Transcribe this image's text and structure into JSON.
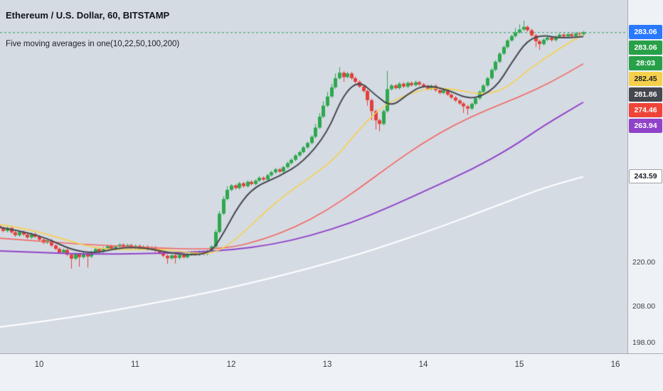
{
  "legend": {
    "title": "Ethereum / U.S. Dollar, 60, BITSTAMP",
    "indicator": "Five moving averages in one(10,22,50,100,200)"
  },
  "price_axis": {
    "badges": [
      {
        "id": "current-price",
        "label": "283.06",
        "bg": "#2979ff",
        "fg": "#ffffff"
      },
      {
        "id": "bar-close-price",
        "label": "283.06",
        "bg": "#28a049",
        "fg": "#ffffff"
      },
      {
        "id": "bar-countdown",
        "label": "28:03",
        "bg": "#28a049",
        "fg": "#ffffff"
      },
      {
        "id": "ma22-value",
        "label": "282.45",
        "bg": "#f6d04c",
        "fg": "#1b1e25"
      },
      {
        "id": "ma10-value",
        "label": "281.86",
        "bg": "#45484f",
        "fg": "#ffffff"
      },
      {
        "id": "ma50-value",
        "label": "274.46",
        "bg": "#ef4438",
        "fg": "#ffffff"
      },
      {
        "id": "ma100-value",
        "label": "263.94",
        "bg": "#9043c9",
        "fg": "#ffffff"
      },
      {
        "id": "ma200-value",
        "label": "243.59",
        "bg": "#ffffff",
        "fg": "#1b1e25",
        "border": "#9aa0ab"
      }
    ]
  },
  "chart_data": {
    "type": "candlestick",
    "symbol": "Ethereum / U.S. Dollar",
    "interval": "60",
    "exchange": "BITSTAMP",
    "x_axis": {
      "labels": [
        "10",
        "11",
        "12",
        "13",
        "14",
        "15",
        "16"
      ],
      "unit": "day of month"
    },
    "y_axis": {
      "ticks": [
        "220.00",
        "208.00",
        "198.00"
      ]
    },
    "price_line": {
      "value": 283.06,
      "color": "#1f9d54"
    },
    "colors": {
      "up": "#2da84e",
      "down": "#e2403b",
      "background": "#d5dbe3"
    },
    "candles": [
      [
        230.2,
        230.6,
        229.1,
        229.5
      ],
      [
        229.5,
        229.9,
        228.4,
        228.8
      ],
      [
        228.8,
        230.0,
        228.4,
        229.6
      ],
      [
        229.6,
        230.0,
        228.0,
        228.4
      ],
      [
        228.4,
        228.8,
        227.2,
        227.6
      ],
      [
        227.6,
        228.9,
        227.2,
        228.5
      ],
      [
        228.5,
        228.9,
        227.4,
        227.8
      ],
      [
        227.8,
        228.2,
        226.6,
        227.0
      ],
      [
        227.0,
        228.3,
        226.6,
        227.9
      ],
      [
        227.9,
        228.3,
        226.8,
        227.2
      ],
      [
        227.2,
        227.6,
        226.0,
        226.4
      ],
      [
        226.4,
        226.8,
        225.2,
        225.6
      ],
      [
        225.6,
        226.6,
        225.2,
        226.2
      ],
      [
        226.2,
        226.6,
        224.4,
        224.8
      ],
      [
        224.8,
        225.2,
        223.5,
        223.9
      ],
      [
        223.9,
        224.3,
        222.5,
        222.9
      ],
      [
        222.9,
        224.0,
        222.5,
        223.6
      ],
      [
        223.6,
        224.0,
        221.9,
        222.3
      ],
      [
        222.3,
        222.7,
        218.5,
        221.2
      ],
      [
        221.2,
        222.8,
        220.8,
        222.4
      ],
      [
        222.4,
        222.8,
        219.0,
        221.6
      ],
      [
        221.6,
        223.0,
        221.2,
        222.6
      ],
      [
        222.6,
        223.0,
        218.8,
        221.8
      ],
      [
        221.8,
        223.4,
        221.4,
        223.0
      ],
      [
        223.0,
        224.2,
        222.6,
        223.8
      ],
      [
        223.8,
        224.2,
        222.8,
        223.2
      ],
      [
        223.2,
        224.4,
        222.8,
        224.0
      ],
      [
        224.0,
        225.0,
        223.6,
        224.6
      ],
      [
        224.6,
        225.0,
        223.5,
        223.9
      ],
      [
        223.9,
        224.9,
        223.5,
        224.5
      ],
      [
        224.5,
        225.4,
        224.1,
        225.0
      ],
      [
        225.0,
        225.4,
        224.0,
        224.4
      ],
      [
        224.4,
        225.3,
        224.0,
        224.9
      ],
      [
        224.9,
        225.3,
        223.9,
        224.3
      ],
      [
        224.3,
        225.1,
        223.9,
        224.7
      ],
      [
        224.7,
        225.1,
        223.6,
        224.0
      ],
      [
        224.0,
        224.9,
        223.6,
        224.5
      ],
      [
        224.5,
        224.9,
        223.4,
        223.8
      ],
      [
        223.8,
        224.6,
        223.4,
        224.2
      ],
      [
        224.2,
        224.6,
        223.0,
        223.4
      ],
      [
        223.4,
        223.8,
        222.4,
        222.8
      ],
      [
        222.8,
        223.2,
        221.6,
        222.0
      ],
      [
        222.0,
        222.4,
        219.8,
        221.3
      ],
      [
        221.3,
        222.5,
        220.9,
        222.1
      ],
      [
        222.1,
        222.5,
        219.9,
        221.4
      ],
      [
        221.4,
        222.6,
        221.0,
        222.2
      ],
      [
        222.2,
        222.6,
        221.2,
        221.6
      ],
      [
        221.6,
        222.8,
        221.2,
        222.4
      ],
      [
        222.4,
        223.3,
        222.0,
        222.9
      ],
      [
        222.9,
        223.3,
        221.9,
        222.3
      ],
      [
        222.3,
        223.4,
        221.9,
        223.0
      ],
      [
        223.0,
        223.4,
        222.1,
        222.5
      ],
      [
        222.5,
        223.6,
        222.1,
        223.2
      ],
      [
        223.2,
        224.9,
        222.8,
        224.5
      ],
      [
        224.5,
        229.2,
        224.1,
        228.5
      ],
      [
        228.5,
        234.2,
        228.1,
        233.5
      ],
      [
        233.5,
        238.3,
        233.1,
        237.5
      ],
      [
        237.5,
        241.0,
        237.1,
        240.0
      ],
      [
        240.0,
        241.6,
        239.6,
        241.2
      ],
      [
        241.2,
        241.6,
        240.1,
        240.5
      ],
      [
        240.5,
        242.2,
        240.1,
        241.8
      ],
      [
        241.8,
        242.2,
        240.6,
        241.0
      ],
      [
        241.0,
        242.6,
        240.6,
        242.2
      ],
      [
        242.2,
        242.6,
        241.2,
        241.6
      ],
      [
        241.6,
        242.9,
        241.2,
        242.5
      ],
      [
        242.5,
        243.7,
        242.1,
        243.3
      ],
      [
        243.3,
        243.7,
        242.4,
        242.8
      ],
      [
        242.8,
        244.4,
        242.4,
        244.0
      ],
      [
        244.0,
        245.2,
        243.6,
        244.8
      ],
      [
        244.8,
        246.0,
        244.4,
        245.6
      ],
      [
        245.6,
        246.0,
        244.6,
        245.0
      ],
      [
        245.0,
        246.6,
        244.6,
        246.2
      ],
      [
        246.2,
        247.7,
        245.8,
        247.3
      ],
      [
        247.3,
        248.6,
        246.9,
        248.2
      ],
      [
        248.2,
        249.8,
        247.8,
        249.4
      ],
      [
        249.4,
        250.7,
        249.0,
        250.3
      ],
      [
        250.3,
        252.0,
        249.9,
        251.6
      ],
      [
        251.6,
        253.2,
        251.2,
        252.8
      ],
      [
        252.8,
        254.9,
        252.4,
        254.5
      ],
      [
        254.5,
        258.0,
        254.1,
        257.0
      ],
      [
        257.0,
        261.0,
        256.6,
        260.0
      ],
      [
        260.0,
        264.2,
        259.6,
        263.0
      ],
      [
        263.0,
        266.8,
        262.6,
        265.5
      ],
      [
        265.5,
        269.0,
        265.1,
        268.0
      ],
      [
        268.0,
        271.8,
        267.6,
        270.5
      ],
      [
        270.5,
        273.5,
        270.1,
        272.0
      ],
      [
        272.0,
        272.4,
        269.5,
        270.8
      ],
      [
        270.8,
        272.2,
        270.4,
        271.8
      ],
      [
        271.8,
        272.2,
        270.1,
        270.5
      ],
      [
        270.5,
        270.9,
        269.1,
        269.5
      ],
      [
        269.5,
        269.9,
        267.8,
        268.2
      ],
      [
        268.2,
        268.6,
        266.6,
        267.0
      ],
      [
        267.0,
        267.4,
        263.0,
        264.5
      ],
      [
        264.5,
        264.9,
        259.0,
        261.5
      ],
      [
        261.5,
        261.9,
        256.5,
        259.0
      ],
      [
        259.0,
        259.4,
        256.0,
        258.0
      ],
      [
        258.0,
        261.9,
        257.6,
        261.5
      ],
      [
        261.5,
        272.5,
        261.1,
        267.5
      ],
      [
        267.5,
        268.9,
        267.1,
        268.5
      ],
      [
        268.5,
        268.9,
        267.4,
        267.8
      ],
      [
        267.8,
        269.4,
        267.4,
        269.0
      ],
      [
        269.0,
        269.4,
        267.8,
        268.2
      ],
      [
        268.2,
        269.6,
        267.8,
        269.2
      ],
      [
        269.2,
        269.6,
        268.2,
        268.6
      ],
      [
        268.6,
        269.8,
        268.2,
        269.4
      ],
      [
        269.4,
        269.8,
        268.4,
        268.8
      ],
      [
        268.8,
        269.2,
        267.9,
        268.3
      ],
      [
        268.3,
        268.7,
        267.2,
        267.6
      ],
      [
        267.6,
        268.8,
        267.2,
        268.4
      ],
      [
        268.4,
        268.8,
        266.8,
        267.2
      ],
      [
        267.2,
        267.6,
        266.1,
        266.5
      ],
      [
        266.5,
        267.7,
        266.1,
        267.3
      ],
      [
        267.3,
        267.7,
        265.6,
        266.0
      ],
      [
        266.0,
        266.4,
        264.8,
        265.2
      ],
      [
        265.2,
        265.6,
        264.0,
        264.4
      ],
      [
        264.4,
        264.8,
        263.2,
        263.6
      ],
      [
        263.6,
        264.0,
        261.0,
        262.8
      ],
      [
        262.8,
        263.2,
        260.5,
        262.2
      ],
      [
        262.2,
        263.9,
        261.8,
        263.5
      ],
      [
        263.5,
        265.4,
        263.1,
        265.0
      ],
      [
        265.0,
        267.2,
        264.6,
        266.8
      ],
      [
        266.8,
        268.9,
        266.4,
        268.5
      ],
      [
        268.5,
        270.9,
        268.1,
        270.5
      ],
      [
        270.5,
        273.2,
        270.1,
        272.8
      ],
      [
        272.8,
        275.4,
        272.4,
        275.0
      ],
      [
        275.0,
        277.6,
        274.6,
        277.2
      ],
      [
        277.2,
        279.4,
        276.8,
        279.0
      ],
      [
        279.0,
        281.2,
        278.6,
        280.8
      ],
      [
        280.8,
        282.4,
        280.4,
        282.0
      ],
      [
        282.0,
        284.2,
        281.6,
        283.0
      ],
      [
        283.0,
        285.2,
        282.6,
        283.8
      ],
      [
        283.8,
        286.2,
        283.4,
        284.5
      ],
      [
        284.5,
        284.9,
        283.2,
        283.6
      ],
      [
        283.6,
        284.0,
        281.8,
        282.2
      ],
      [
        282.2,
        282.6,
        279.0,
        280.6
      ],
      [
        280.6,
        281.0,
        278.2,
        279.8
      ],
      [
        279.8,
        281.4,
        279.4,
        281.0
      ],
      [
        281.0,
        282.0,
        280.6,
        281.6
      ],
      [
        281.6,
        282.0,
        280.5,
        280.9
      ],
      [
        280.9,
        282.2,
        280.5,
        281.8
      ],
      [
        281.8,
        282.8,
        281.4,
        282.4
      ],
      [
        282.4,
        282.8,
        281.5,
        281.9
      ],
      [
        281.9,
        282.9,
        281.5,
        282.5
      ],
      [
        282.5,
        282.9,
        281.6,
        282.0
      ],
      [
        282.0,
        283.1,
        281.6,
        282.7
      ],
      [
        282.7,
        283.1,
        282.1,
        282.5
      ],
      [
        282.5,
        283.4,
        282.1,
        283.06
      ]
    ],
    "ma_lines": [
      {
        "name": "MA200",
        "period": 200,
        "color": "#ffffff",
        "width": 2,
        "last_value": 243.59,
        "points": [
          [
            0,
            202.5
          ],
          [
            12,
            204.2
          ],
          [
            24,
            206.2
          ],
          [
            36,
            208.5
          ],
          [
            48,
            211.0
          ],
          [
            60,
            213.8
          ],
          [
            72,
            217.0
          ],
          [
            84,
            220.5
          ],
          [
            96,
            224.5
          ],
          [
            108,
            229.0
          ],
          [
            118,
            233.0
          ],
          [
            128,
            237.2
          ],
          [
            136,
            240.5
          ],
          [
            146,
            243.59
          ]
        ]
      },
      {
        "name": "MA100",
        "period": 100,
        "color": "#9043c9",
        "width": 2,
        "last_value": 263.94,
        "points": [
          [
            0,
            223.3
          ],
          [
            12,
            222.8
          ],
          [
            24,
            222.4
          ],
          [
            36,
            222.6
          ],
          [
            48,
            222.9
          ],
          [
            58,
            223.6
          ],
          [
            68,
            225.0
          ],
          [
            78,
            227.5
          ],
          [
            88,
            231.0
          ],
          [
            98,
            235.5
          ],
          [
            108,
            240.5
          ],
          [
            118,
            245.5
          ],
          [
            128,
            251.5
          ],
          [
            136,
            257.5
          ],
          [
            146,
            263.94
          ]
        ]
      },
      {
        "name": "MA50",
        "period": 50,
        "color": "#f26661",
        "width": 1.6,
        "last_value": 274.46,
        "points": [
          [
            0,
            226.8
          ],
          [
            10,
            226.0
          ],
          [
            20,
            225.2
          ],
          [
            30,
            224.6
          ],
          [
            40,
            224.1
          ],
          [
            50,
            223.8
          ],
          [
            58,
            224.2
          ],
          [
            66,
            226.4
          ],
          [
            74,
            229.8
          ],
          [
            82,
            234.4
          ],
          [
            90,
            240.4
          ],
          [
            98,
            246.9
          ],
          [
            106,
            252.9
          ],
          [
            114,
            257.9
          ],
          [
            122,
            261.9
          ],
          [
            130,
            265.4
          ],
          [
            138,
            269.4
          ],
          [
            146,
            274.46
          ]
        ]
      },
      {
        "name": "MA22",
        "period": 22,
        "color": "#f6d04c",
        "width": 1.6,
        "last_value": 282.45,
        "points": [
          [
            0,
            230.6
          ],
          [
            8,
            229.1
          ],
          [
            16,
            226.6
          ],
          [
            24,
            224.0
          ],
          [
            32,
            223.6
          ],
          [
            40,
            223.9
          ],
          [
            48,
            222.7
          ],
          [
            54,
            222.6
          ],
          [
            60,
            227.1
          ],
          [
            66,
            233.6
          ],
          [
            72,
            239.1
          ],
          [
            78,
            243.6
          ],
          [
            84,
            248.6
          ],
          [
            90,
            256.6
          ],
          [
            96,
            263.1
          ],
          [
            102,
            266.1
          ],
          [
            108,
            267.9
          ],
          [
            114,
            267.5
          ],
          [
            120,
            266.0
          ],
          [
            126,
            267.1
          ],
          [
            132,
            272.6
          ],
          [
            138,
            277.1
          ],
          [
            142,
            279.9
          ],
          [
            146,
            282.45
          ]
        ]
      },
      {
        "name": "MA10",
        "period": 10,
        "color": "#45484f",
        "width": 2,
        "last_value": 281.86,
        "points": [
          [
            0,
            229.8
          ],
          [
            6,
            228.6
          ],
          [
            12,
            226.8
          ],
          [
            18,
            223.6
          ],
          [
            24,
            222.6
          ],
          [
            30,
            224.2
          ],
          [
            36,
            224.3
          ],
          [
            42,
            222.9
          ],
          [
            48,
            222.1
          ],
          [
            53,
            222.9
          ],
          [
            56,
            228.0
          ],
          [
            60,
            236.0
          ],
          [
            64,
            241.0
          ],
          [
            70,
            243.6
          ],
          [
            76,
            247.6
          ],
          [
            82,
            255.5
          ],
          [
            86,
            266.0
          ],
          [
            90,
            269.9
          ],
          [
            94,
            265.9
          ],
          [
            98,
            262.6
          ],
          [
            102,
            266.0
          ],
          [
            106,
            268.7
          ],
          [
            112,
            267.4
          ],
          [
            118,
            264.4
          ],
          [
            124,
            267.6
          ],
          [
            128,
            274.6
          ],
          [
            132,
            280.9
          ],
          [
            136,
            282.3
          ],
          [
            140,
            281.4
          ],
          [
            146,
            281.86
          ]
        ]
      }
    ]
  }
}
